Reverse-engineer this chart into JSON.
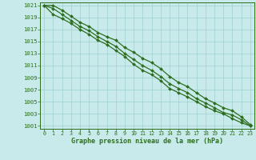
{
  "x": [
    0,
    1,
    2,
    3,
    4,
    5,
    6,
    7,
    8,
    9,
    10,
    11,
    12,
    13,
    14,
    15,
    16,
    17,
    18,
    19,
    20,
    21,
    22,
    23
  ],
  "line_top": [
    1021,
    1021,
    1020.2,
    1019.2,
    1018.2,
    1017.5,
    1016.5,
    1015.8,
    1015.2,
    1014.0,
    1013.2,
    1012.2,
    1011.5,
    1010.5,
    1009.2,
    1008.2,
    1007.5,
    1006.5,
    1005.5,
    1004.8,
    1004.0,
    1003.5,
    1002.5,
    1001.2
  ],
  "line_mid": [
    1021,
    1020.5,
    1019.5,
    1018.5,
    1017.5,
    1016.8,
    1015.8,
    1015.0,
    1014.2,
    1013.0,
    1012.0,
    1011.0,
    1010.2,
    1009.2,
    1008.0,
    1007.2,
    1006.5,
    1005.5,
    1004.8,
    1004.0,
    1003.2,
    1002.8,
    1002.0,
    1001.0
  ],
  "line_bot": [
    1021,
    1019.5,
    1018.8,
    1018.0,
    1017.0,
    1016.2,
    1015.2,
    1014.5,
    1013.5,
    1012.5,
    1011.2,
    1010.2,
    1009.5,
    1008.5,
    1007.2,
    1006.5,
    1005.8,
    1005.0,
    1004.2,
    1003.5,
    1003.0,
    1002.2,
    1001.5,
    1001.0
  ],
  "line_color": "#2d6e1e",
  "marker": "D",
  "marker_size": 2.0,
  "bg_color": "#c8eaea",
  "grid_color": "#9fcfcf",
  "ylim": [
    1000.5,
    1021.5
  ],
  "xlim": [
    -0.5,
    23.5
  ],
  "yticks": [
    1001,
    1003,
    1005,
    1007,
    1009,
    1011,
    1013,
    1015,
    1017,
    1019,
    1021
  ],
  "xticks": [
    0,
    1,
    2,
    3,
    4,
    5,
    6,
    7,
    8,
    9,
    10,
    11,
    12,
    13,
    14,
    15,
    16,
    17,
    18,
    19,
    20,
    21,
    22,
    23
  ],
  "xlabel": "Graphe pression niveau de la mer (hPa)",
  "xlabel_color": "#2d6e1e",
  "tick_color": "#2d6e1e",
  "axis_color": "#2d6e1e",
  "linewidth": 0.9
}
